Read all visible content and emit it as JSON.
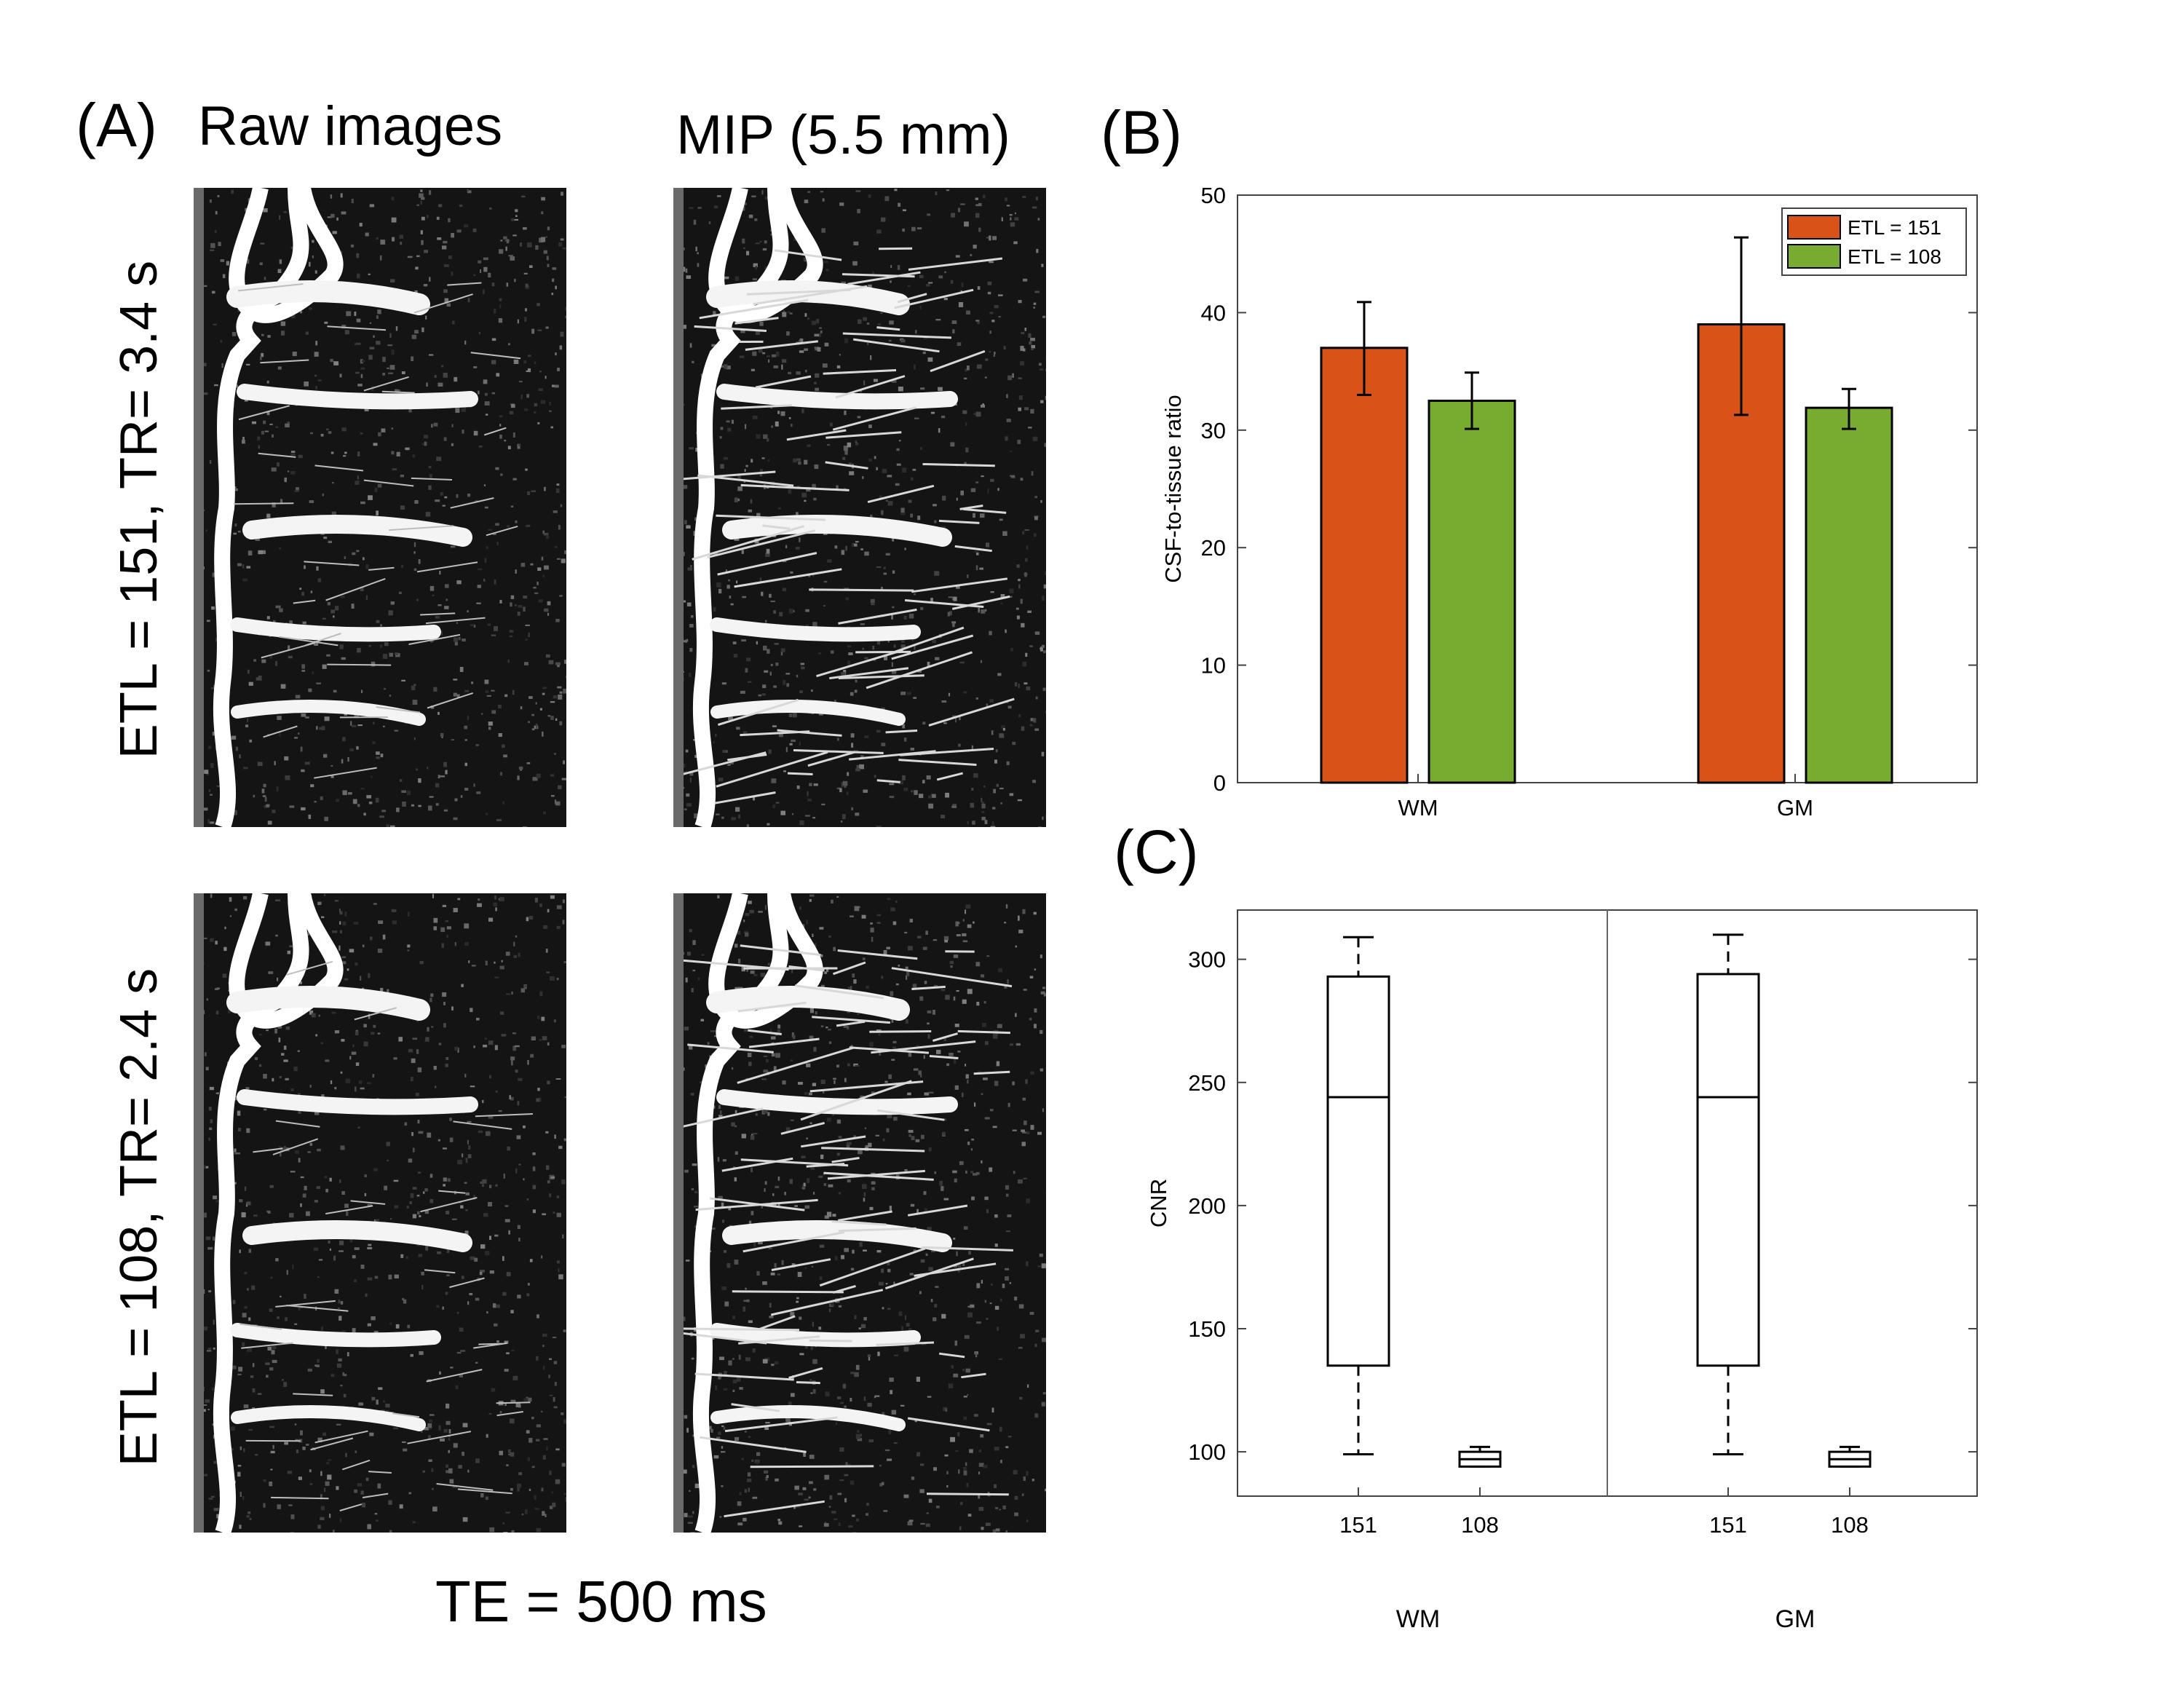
{
  "panel_a": {
    "letter": "(A)",
    "col_titles": [
      "Raw images",
      "MIP (5.5 mm)"
    ],
    "row_labels": [
      "ETL = 151, TR= 3.4 s",
      "ETL = 108, TR= 2.4 s"
    ],
    "footer": "TE = 500 ms",
    "images": [
      {
        "row": 0,
        "col": 0,
        "kind": "raw"
      },
      {
        "row": 0,
        "col": 1,
        "kind": "mip"
      },
      {
        "row": 1,
        "col": 0,
        "kind": "raw"
      },
      {
        "row": 1,
        "col": 1,
        "kind": "mip"
      }
    ]
  },
  "panel_b": {
    "letter": "(B)"
  },
  "panel_c": {
    "letter": "(C)"
  },
  "chart_data": [
    {
      "id": "B",
      "type": "bar",
      "categories": [
        "WM",
        "GM"
      ],
      "series": [
        {
          "name": "ETL = 151",
          "color": "#d95319",
          "values": [
            37.0,
            39.0
          ],
          "err_low": [
            33.0,
            31.3
          ],
          "err_high": [
            40.9,
            46.4
          ]
        },
        {
          "name": "ETL = 108",
          "color": "#77ac30",
          "values": [
            32.5,
            31.9
          ],
          "err_low": [
            30.1,
            30.1
          ],
          "err_high": [
            34.9,
            33.5
          ]
        }
      ],
      "ylabel": "CSF-to-tissue ratio",
      "ylim": [
        0,
        50
      ],
      "yticks": [
        0,
        10,
        20,
        30,
        40,
        50
      ],
      "legend": "top-right",
      "grid": false
    },
    {
      "id": "C",
      "type": "box",
      "groups": [
        {
          "label": "WM",
          "boxes": [
            {
              "label": "151",
              "min": 99,
              "q1": 135,
              "median": 244,
              "q3": 293,
              "max": 309
            },
            {
              "label": "108",
              "min": 94,
              "q1": 94,
              "median": 97,
              "q3": 100,
              "max": 102
            }
          ]
        },
        {
          "label": "GM",
          "boxes": [
            {
              "label": "151",
              "min": 99,
              "q1": 135,
              "median": 244,
              "q3": 294,
              "max": 310
            },
            {
              "label": "108",
              "min": 94,
              "q1": 94,
              "median": 97,
              "q3": 100,
              "max": 102
            }
          ]
        }
      ],
      "ylabel": "CNR",
      "ylim": [
        82,
        320
      ],
      "yticks": [
        100,
        150,
        200,
        250,
        300
      ],
      "grid": false
    }
  ]
}
